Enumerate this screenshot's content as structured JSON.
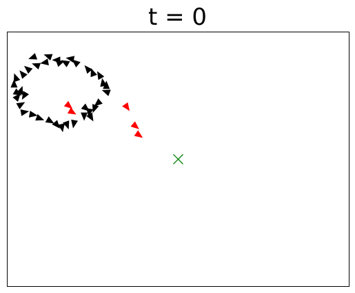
{
  "chart_data": {
    "type": "scatter",
    "title": "t = 0",
    "xlabel": "",
    "ylabel": "",
    "xlim": [
      0,
      1
    ],
    "ylim": [
      0,
      1
    ],
    "grid": false,
    "axis_ticks": false,
    "series": [
      {
        "marker": "triangle-arrow",
        "color": "#000000",
        "points": [
          {
            "x": 0.075,
            "y": 0.9,
            "angle": 160
          },
          {
            "x": 0.12,
            "y": 0.905,
            "angle": 200
          },
          {
            "x": 0.145,
            "y": 0.89,
            "angle": 180
          },
          {
            "x": 0.17,
            "y": 0.88,
            "angle": 210
          },
          {
            "x": 0.185,
            "y": 0.895,
            "angle": 190
          },
          {
            "x": 0.2,
            "y": 0.88,
            "angle": 220
          },
          {
            "x": 0.235,
            "y": 0.855,
            "angle": 230
          },
          {
            "x": 0.25,
            "y": 0.84,
            "angle": 250
          },
          {
            "x": 0.27,
            "y": 0.83,
            "angle": 240
          },
          {
            "x": 0.28,
            "y": 0.8,
            "angle": 260
          },
          {
            "x": 0.29,
            "y": 0.79,
            "angle": 270
          },
          {
            "x": 0.29,
            "y": 0.765,
            "angle": 200
          },
          {
            "x": 0.265,
            "y": 0.72,
            "angle": 140
          },
          {
            "x": 0.255,
            "y": 0.7,
            "angle": 110
          },
          {
            "x": 0.24,
            "y": 0.685,
            "angle": 100
          },
          {
            "x": 0.225,
            "y": 0.67,
            "angle": 90
          },
          {
            "x": 0.245,
            "y": 0.665,
            "angle": 60
          },
          {
            "x": 0.175,
            "y": 0.635,
            "angle": 70
          },
          {
            "x": 0.16,
            "y": 0.625,
            "angle": 80
          },
          {
            "x": 0.145,
            "y": 0.635,
            "angle": 50
          },
          {
            "x": 0.125,
            "y": 0.65,
            "angle": 30
          },
          {
            "x": 0.095,
            "y": 0.66,
            "angle": 20
          },
          {
            "x": 0.075,
            "y": 0.675,
            "angle": 10
          },
          {
            "x": 0.05,
            "y": 0.685,
            "angle": -10
          },
          {
            "x": 0.04,
            "y": 0.715,
            "angle": -30
          },
          {
            "x": 0.03,
            "y": 0.745,
            "angle": -50
          },
          {
            "x": 0.04,
            "y": 0.77,
            "angle": -70
          },
          {
            "x": 0.02,
            "y": 0.795,
            "angle": -90
          },
          {
            "x": 0.025,
            "y": 0.82,
            "angle": -110
          },
          {
            "x": 0.045,
            "y": 0.835,
            "angle": -130
          },
          {
            "x": 0.06,
            "y": 0.855,
            "angle": -140
          },
          {
            "x": 0.085,
            "y": 0.87,
            "angle": -160
          },
          {
            "x": 0.11,
            "y": 0.88,
            "angle": 170
          },
          {
            "x": 0.03,
            "y": 0.76,
            "angle": 30
          },
          {
            "x": 0.05,
            "y": 0.75,
            "angle": 120
          },
          {
            "x": 0.155,
            "y": 0.88,
            "angle": -20
          },
          {
            "x": 0.23,
            "y": 0.7,
            "angle": 40
          },
          {
            "x": 0.195,
            "y": 0.64,
            "angle": 100
          }
        ]
      },
      {
        "marker": "triangle-arrow",
        "color": "#ff0000",
        "points": [
          {
            "x": 0.18,
            "y": 0.71,
            "angle": 40
          },
          {
            "x": 0.19,
            "y": 0.685,
            "angle": 30
          },
          {
            "x": 0.35,
            "y": 0.705,
            "angle": 55
          },
          {
            "x": 0.375,
            "y": 0.63,
            "angle": 40
          },
          {
            "x": 0.385,
            "y": 0.595,
            "angle": 35
          }
        ]
      },
      {
        "marker": "x",
        "color": "#008000",
        "points": [
          {
            "x": 0.5,
            "y": 0.5
          }
        ]
      }
    ]
  }
}
